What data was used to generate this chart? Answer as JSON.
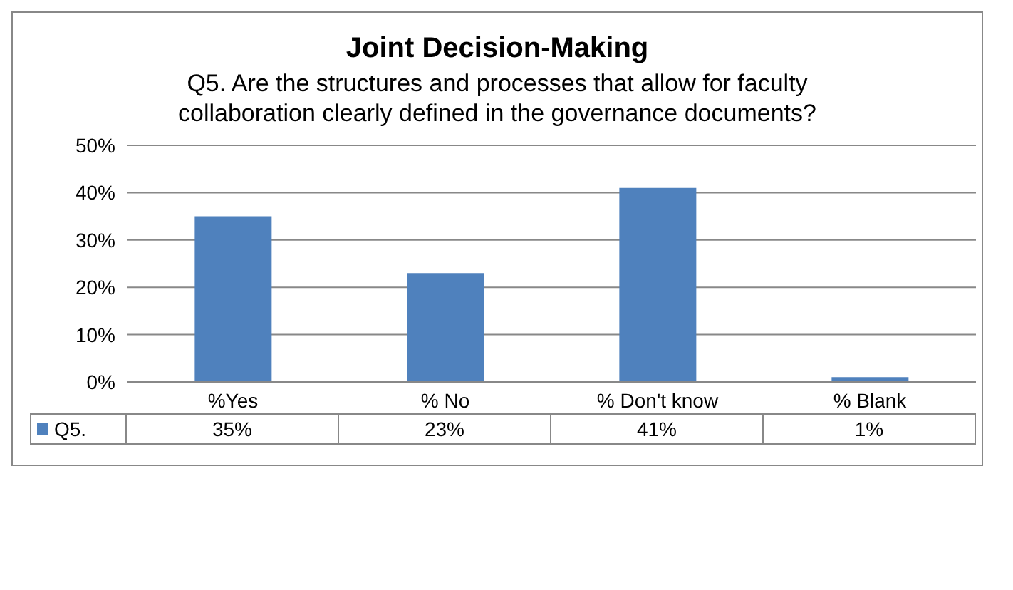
{
  "chart_data": {
    "type": "bar",
    "title": "Joint Decision-Making",
    "subtitle": "Q5. Are the structures and processes that allow for faculty collaboration clearly defined in the governance documents?",
    "categories": [
      "%Yes",
      "% No",
      "% Don't know",
      "% Blank"
    ],
    "series": [
      {
        "name": "Q5.",
        "color": "#4f81bd",
        "values": [
          35,
          23,
          41,
          1
        ],
        "value_labels": [
          "35%",
          "23%",
          "41%",
          "1%"
        ]
      }
    ],
    "ylim": [
      0,
      50
    ],
    "yticks": [
      {
        "value": 0,
        "label": "0%"
      },
      {
        "value": 10,
        "label": "10%"
      },
      {
        "value": 20,
        "label": "20%"
      },
      {
        "value": 30,
        "label": "30%"
      },
      {
        "value": 40,
        "label": "40%"
      },
      {
        "value": 50,
        "label": "50%"
      }
    ],
    "grid": "y",
    "legend": "bottom left"
  }
}
